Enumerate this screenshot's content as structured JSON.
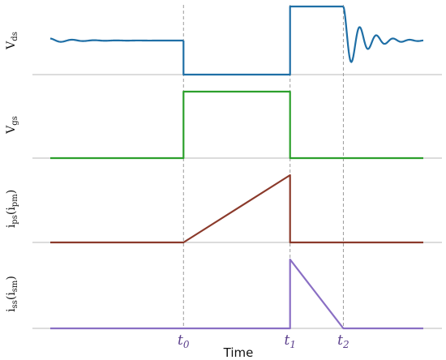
{
  "chart_data": {
    "type": "line",
    "xlabel": "Time",
    "events": [
      {
        "name": "t0",
        "main": "t",
        "sub": "0",
        "x": 2.0
      },
      {
        "name": "t1",
        "main": "t",
        "sub": "1",
        "x": 4.0
      },
      {
        "name": "t2",
        "main": "t",
        "sub": "2",
        "x": 5.0
      }
    ],
    "xlim": [
      -0.5,
      6.5
    ],
    "panels": [
      {
        "id": "vds",
        "ylabel_main": "V",
        "ylabel_sub": "ds",
        "color": "#1f6fa6",
        "segments": [
          {
            "kind": "ringing",
            "x0": -0.5,
            "x1": 2.0,
            "level": 0.5,
            "amp": 0.03,
            "decay": 2.2,
            "freq": 2.4
          },
          {
            "kind": "line",
            "points": [
              [
                2.0,
                0.5
              ],
              [
                2.0,
                0.0
              ],
              [
                4.0,
                0.0
              ],
              [
                4.0,
                1.0
              ],
              [
                5.0,
                1.0
              ]
            ]
          },
          {
            "kind": "ringing",
            "x0": 5.0,
            "x1": 6.5,
            "level": 0.5,
            "amp": 0.5,
            "decay": 3.0,
            "freq": 3.2
          }
        ]
      },
      {
        "id": "vgs",
        "ylabel_main": "V",
        "ylabel_sub": "gs",
        "color": "#2ca02c",
        "segments": [
          {
            "kind": "line",
            "points": [
              [
                -0.5,
                0
              ],
              [
                2.0,
                0
              ],
              [
                2.0,
                1
              ],
              [
                4.0,
                1
              ],
              [
                4.0,
                0
              ],
              [
                6.5,
                0
              ]
            ]
          }
        ]
      },
      {
        "id": "ips",
        "ylabel_main": "i",
        "ylabel_sub": "ps",
        "ylabel_paren_main": "i",
        "ylabel_paren_sub": "pm",
        "color": "#8b3a2b",
        "segments": [
          {
            "kind": "line",
            "points": [
              [
                -0.5,
                0
              ],
              [
                2.0,
                0
              ],
              [
                4.0,
                1
              ],
              [
                4.0,
                0
              ],
              [
                6.5,
                0
              ]
            ]
          }
        ]
      },
      {
        "id": "iss",
        "ylabel_main": "i",
        "ylabel_sub": "ss",
        "ylabel_paren_main": "i",
        "ylabel_paren_sub": "sm",
        "color": "#8a6fc4",
        "segments": [
          {
            "kind": "line",
            "points": [
              [
                -0.5,
                0
              ],
              [
                4.0,
                0
              ],
              [
                4.0,
                1
              ],
              [
                5.0,
                0
              ],
              [
                6.5,
                0
              ]
            ]
          }
        ]
      }
    ]
  }
}
